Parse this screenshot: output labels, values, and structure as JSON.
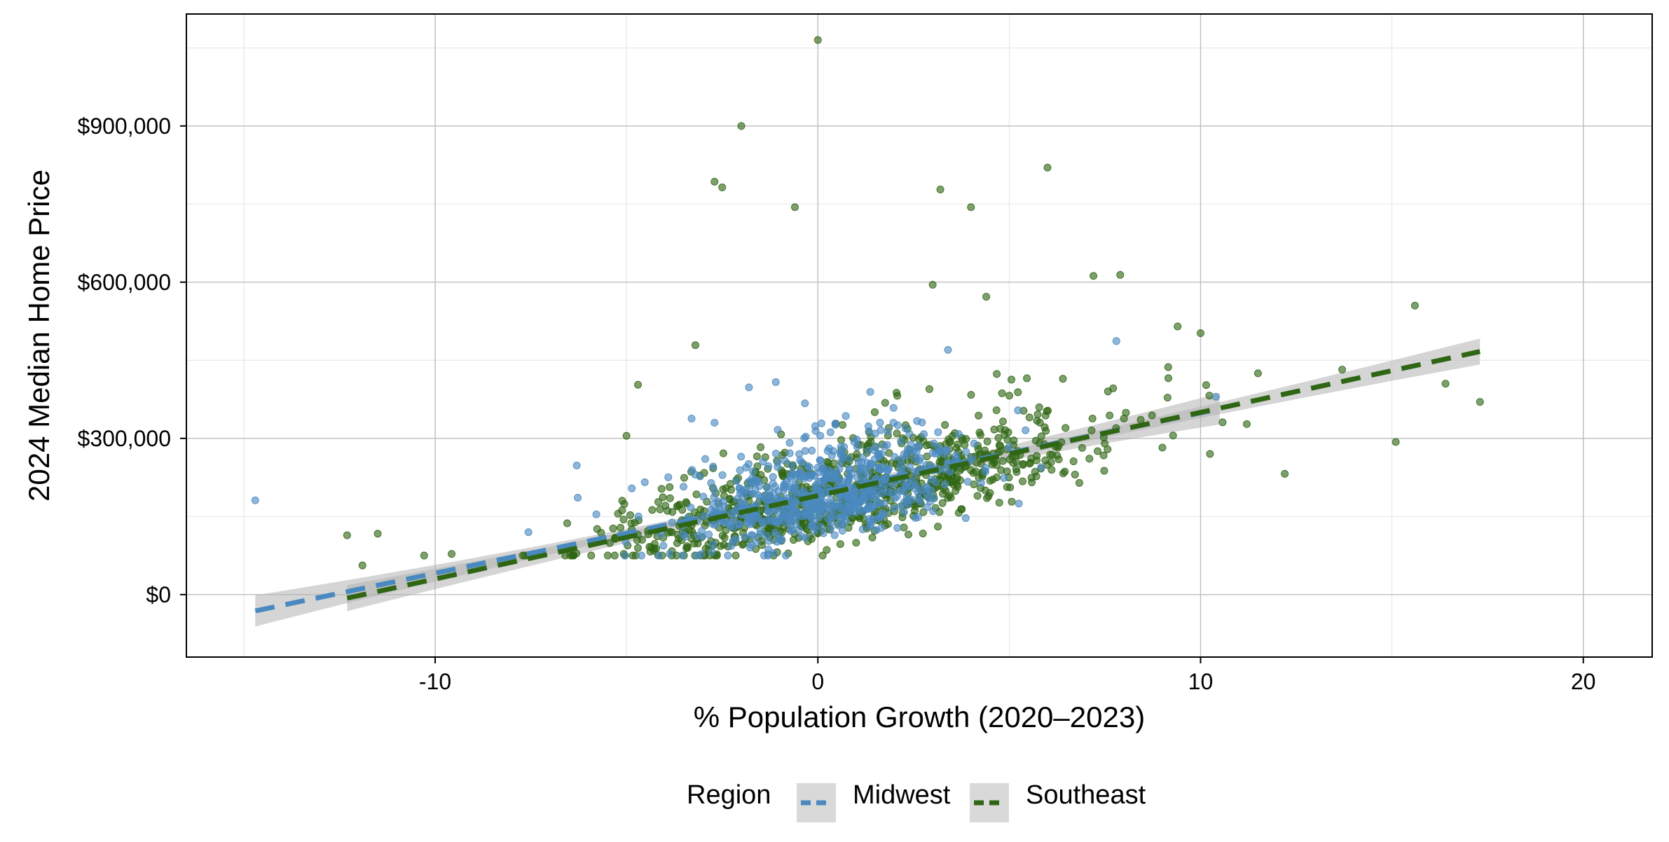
{
  "chart_data": {
    "type": "scatter",
    "title": "",
    "xlabel": "% Population Growth (2020–2023)",
    "ylabel": "2024 Median Home Price",
    "xlim": [
      -16.5,
      21.8
    ],
    "ylim": [
      -120000,
      1115000
    ],
    "x_ticks": [
      -10,
      0,
      10,
      20
    ],
    "x_tick_labels": [
      "-10",
      "0",
      "10",
      "20"
    ],
    "y_ticks": [
      0,
      300000,
      600000,
      900000
    ],
    "y_tick_labels": [
      "$0",
      "$300,000",
      "$600,000",
      "$900,000"
    ],
    "grid": true,
    "legend": {
      "title": "Region",
      "position": "bottom",
      "entries": [
        "Midwest",
        "Southeast"
      ]
    },
    "colors": {
      "Midwest": "#4a89c0",
      "Southeast": "#2f6614",
      "band": "#b3b3b3"
    },
    "series": [
      {
        "name": "Midwest",
        "color": "#4a89c0",
        "n_points_approx": 650,
        "x_range": [
          -14.7,
          10.5
        ],
        "fit": {
          "type": "linear",
          "slope": 15400,
          "intercept": 195000,
          "x_range": [
            -14.7,
            10.5
          ],
          "ci_halfwidth_ends": 30000,
          "ci_halfwidth_center": 7000
        },
        "outliers": [
          {
            "x": -14.7,
            "y": 181000
          },
          {
            "x": -6.3,
            "y": 248000
          },
          {
            "x": -3.3,
            "y": 338000
          },
          {
            "x": -2.7,
            "y": 330000
          },
          {
            "x": -1.8,
            "y": 398000
          },
          {
            "x": -1.1,
            "y": 408000
          },
          {
            "x": 3.4,
            "y": 470000
          },
          {
            "x": 7.8,
            "y": 487000
          },
          {
            "x": 10.4,
            "y": 380000
          }
        ]
      },
      {
        "name": "Southeast",
        "color": "#2f6614",
        "n_points_approx": 900,
        "x_range": [
          -12.3,
          17.3
        ],
        "fit": {
          "type": "linear",
          "slope": 16000,
          "intercept": 190000,
          "x_range": [
            -12.3,
            17.3
          ],
          "ci_halfwidth_ends": 25000,
          "ci_halfwidth_center": 6000
        },
        "outliers": [
          {
            "x": 0.0,
            "y": 1065000
          },
          {
            "x": -2.0,
            "y": 900000
          },
          {
            "x": -2.7,
            "y": 793000
          },
          {
            "x": -2.5,
            "y": 782000
          },
          {
            "x": -0.6,
            "y": 744000
          },
          {
            "x": 3.2,
            "y": 778000
          },
          {
            "x": 4.0,
            "y": 744000
          },
          {
            "x": 6.0,
            "y": 820000
          },
          {
            "x": 7.2,
            "y": 612000
          },
          {
            "x": 7.9,
            "y": 614000
          },
          {
            "x": 3.0,
            "y": 595000
          },
          {
            "x": 4.4,
            "y": 572000
          },
          {
            "x": 15.6,
            "y": 555000
          },
          {
            "x": -3.2,
            "y": 479000
          },
          {
            "x": 9.4,
            "y": 515000
          },
          {
            "x": 10.0,
            "y": 502000
          },
          {
            "x": 16.4,
            "y": 405000
          },
          {
            "x": 17.3,
            "y": 370000
          },
          {
            "x": 15.1,
            "y": 293000
          },
          {
            "x": 12.2,
            "y": 232000
          },
          {
            "x": -12.3,
            "y": 114000
          },
          {
            "x": -11.5,
            "y": 117000
          },
          {
            "x": -11.9,
            "y": 56000
          },
          {
            "x": -4.7,
            "y": 403000
          },
          {
            "x": -5.0,
            "y": 305000
          },
          {
            "x": 13.7,
            "y": 432000
          },
          {
            "x": 11.5,
            "y": 425000
          }
        ]
      }
    ]
  }
}
